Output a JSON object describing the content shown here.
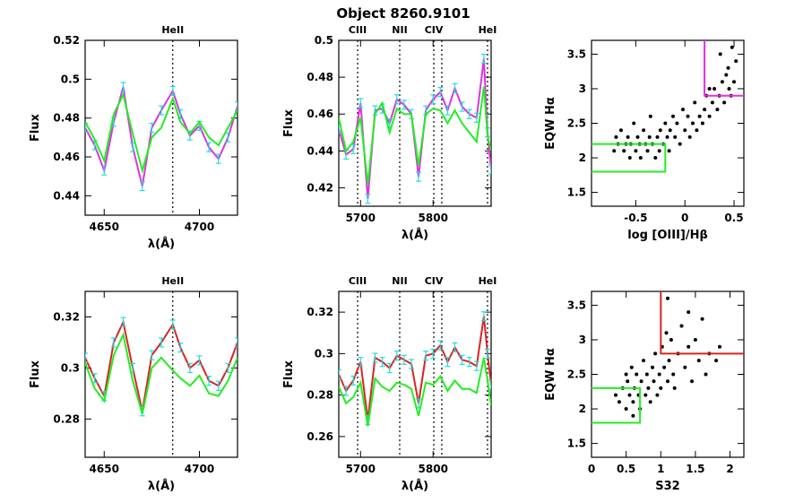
{
  "figure": {
    "title": "Object 8260.9101"
  },
  "colors": {
    "magenta": "#e030e0",
    "green": "#22ee22",
    "red": "#dd2222",
    "cyan": "#22dddd",
    "black": "#000000"
  },
  "chart_data": [
    {
      "id": "heii-top",
      "type": "line",
      "title": "",
      "xlabel": "λ(Å)",
      "ylabel": "Flux",
      "xlim": [
        4640,
        4720
      ],
      "ylim": [
        0.43,
        0.52
      ],
      "xticks": [
        4650,
        4700
      ],
      "yticks": [
        0.44,
        0.46,
        0.48,
        0.5,
        0.52
      ],
      "lines": [
        {
          "label": "HeII",
          "x": 4686
        }
      ],
      "x": [
        4640,
        4645,
        4650,
        4655,
        4660,
        4665,
        4670,
        4675,
        4680,
        4686,
        4690,
        4695,
        4700,
        4705,
        4710,
        4715,
        4720
      ],
      "series": [
        {
          "color": "magenta",
          "errors": true,
          "values": [
            0.475,
            0.466,
            0.453,
            0.478,
            0.496,
            0.465,
            0.445,
            0.475,
            0.484,
            0.494,
            0.482,
            0.471,
            0.476,
            0.465,
            0.459,
            0.47,
            0.486
          ]
        },
        {
          "color": "green",
          "values": [
            0.478,
            0.469,
            0.458,
            0.482,
            0.492,
            0.472,
            0.453,
            0.47,
            0.475,
            0.49,
            0.478,
            0.472,
            0.478,
            0.47,
            0.466,
            0.475,
            0.484
          ]
        }
      ]
    },
    {
      "id": "ciii-top",
      "type": "line",
      "title": "",
      "xlabel": "λ(Å)",
      "ylabel": "Flux",
      "xlim": [
        5670,
        5880
      ],
      "ylim": [
        0.41,
        0.5
      ],
      "xticks": [
        5700,
        5800
      ],
      "yticks": [
        0.42,
        0.44,
        0.46,
        0.48,
        0.5
      ],
      "lines": [
        {
          "label": "CIII",
          "x": 5696
        },
        {
          "label": "NII",
          "x": 5754
        },
        {
          "label": "CIV",
          "x": 5801
        },
        {
          "x": 5812
        },
        {
          "label": "HeI",
          "x": 5875
        }
      ],
      "x": [
        5670,
        5680,
        5690,
        5700,
        5710,
        5720,
        5730,
        5740,
        5750,
        5760,
        5770,
        5780,
        5790,
        5800,
        5810,
        5820,
        5830,
        5840,
        5850,
        5860,
        5870,
        5875,
        5880
      ],
      "series": [
        {
          "color": "magenta",
          "errors": true,
          "values": [
            0.452,
            0.438,
            0.441,
            0.466,
            0.414,
            0.462,
            0.463,
            0.455,
            0.468,
            0.465,
            0.46,
            0.426,
            0.462,
            0.468,
            0.472,
            0.462,
            0.474,
            0.464,
            0.46,
            0.458,
            0.49,
            0.45,
            0.43
          ]
        },
        {
          "color": "green",
          "values": [
            0.458,
            0.44,
            0.445,
            0.458,
            0.422,
            0.46,
            0.466,
            0.45,
            0.463,
            0.46,
            0.46,
            0.432,
            0.46,
            0.463,
            0.462,
            0.455,
            0.462,
            0.455,
            0.45,
            0.445,
            0.475,
            0.448,
            0.44
          ]
        }
      ]
    },
    {
      "id": "o3-ha",
      "type": "scatter",
      "title": "",
      "xlabel": "log [OIII]/Hβ",
      "ylabel": "EQW Hα",
      "xlim": [
        -0.95,
        0.6
      ],
      "ylim": [
        1.3,
        3.7
      ],
      "xticks": [
        -0.5,
        0,
        0.5
      ],
      "yticks": [
        1.5,
        2,
        2.5,
        3,
        3.5
      ],
      "boxes": [
        {
          "color": "green",
          "path": [
            [
              -0.95,
              2.2
            ],
            [
              -0.2,
              2.2
            ],
            [
              -0.2,
              1.8
            ],
            [
              -0.95,
              1.8
            ]
          ]
        },
        {
          "color": "magenta",
          "path": [
            [
              0.2,
              3.7
            ],
            [
              0.2,
              2.9
            ],
            [
              0.6,
              2.9
            ]
          ]
        }
      ],
      "points": [
        [
          -0.72,
          2.1
        ],
        [
          -0.7,
          2.3
        ],
        [
          -0.68,
          2.2
        ],
        [
          -0.65,
          2.4
        ],
        [
          -0.62,
          2.1
        ],
        [
          -0.6,
          2.2
        ],
        [
          -0.58,
          2.3
        ],
        [
          -0.56,
          2.0
        ],
        [
          -0.55,
          2.2
        ],
        [
          -0.52,
          2.5
        ],
        [
          -0.5,
          2.1
        ],
        [
          -0.48,
          2.3
        ],
        [
          -0.46,
          2.2
        ],
        [
          -0.45,
          2.0
        ],
        [
          -0.42,
          2.4
        ],
        [
          -0.4,
          2.2
        ],
        [
          -0.38,
          2.1
        ],
        [
          -0.36,
          2.3
        ],
        [
          -0.35,
          2.6
        ],
        [
          -0.33,
          2.2
        ],
        [
          -0.3,
          2.0
        ],
        [
          -0.28,
          2.3
        ],
        [
          -0.26,
          2.1
        ],
        [
          -0.25,
          2.4
        ],
        [
          -0.22,
          2.2
        ],
        [
          -0.2,
          2.5
        ],
        [
          -0.18,
          2.3
        ],
        [
          -0.16,
          2.1
        ],
        [
          -0.15,
          2.4
        ],
        [
          -0.12,
          2.6
        ],
        [
          -0.1,
          2.3
        ],
        [
          -0.08,
          2.5
        ],
        [
          -0.05,
          2.2
        ],
        [
          -0.02,
          2.7
        ],
        [
          0.0,
          2.4
        ],
        [
          0.03,
          2.6
        ],
        [
          0.05,
          2.3
        ],
        [
          0.08,
          2.5
        ],
        [
          0.1,
          2.8
        ],
        [
          0.12,
          2.4
        ],
        [
          0.15,
          2.6
        ],
        [
          0.18,
          2.5
        ],
        [
          0.2,
          2.7
        ],
        [
          0.22,
          2.9
        ],
        [
          0.25,
          2.6
        ],
        [
          0.28,
          2.8
        ],
        [
          0.3,
          3.0
        ],
        [
          0.33,
          2.7
        ],
        [
          0.35,
          2.9
        ],
        [
          0.38,
          3.1
        ],
        [
          0.4,
          2.8
        ],
        [
          0.42,
          3.2
        ],
        [
          0.45,
          3.0
        ],
        [
          0.47,
          2.9
        ],
        [
          0.5,
          3.1
        ],
        [
          0.52,
          3.4
        ],
        [
          0.44,
          3.3
        ],
        [
          0.48,
          3.6
        ],
        [
          0.36,
          3.5
        ],
        [
          0.25,
          3.0
        ]
      ]
    },
    {
      "id": "heii-bottom",
      "type": "line",
      "title": "",
      "xlabel": "λ(Å)",
      "ylabel": "Flux",
      "xlim": [
        4640,
        4720
      ],
      "ylim": [
        0.265,
        0.33
      ],
      "xticks": [
        4650,
        4700
      ],
      "yticks": [
        0.28,
        0.3,
        0.32
      ],
      "lines": [
        {
          "label": "HeII",
          "x": 4686
        }
      ],
      "x": [
        4640,
        4645,
        4650,
        4655,
        4660,
        4665,
        4670,
        4675,
        4680,
        4686,
        4690,
        4695,
        4700,
        4705,
        4710,
        4715,
        4720
      ],
      "series": [
        {
          "color": "red",
          "errors": true,
          "values": [
            0.304,
            0.296,
            0.289,
            0.31,
            0.318,
            0.3,
            0.283,
            0.305,
            0.31,
            0.317,
            0.308,
            0.3,
            0.303,
            0.295,
            0.293,
            0.3,
            0.31
          ]
        },
        {
          "color": "green",
          "values": [
            0.302,
            0.292,
            0.287,
            0.305,
            0.313,
            0.295,
            0.282,
            0.3,
            0.304,
            0.299,
            0.296,
            0.293,
            0.297,
            0.29,
            0.289,
            0.295,
            0.304
          ]
        }
      ]
    },
    {
      "id": "ciii-bottom",
      "type": "line",
      "title": "",
      "xlabel": "λ(Å)",
      "ylabel": "Flux",
      "xlim": [
        5670,
        5880
      ],
      "ylim": [
        0.25,
        0.33
      ],
      "xticks": [
        5700,
        5800
      ],
      "yticks": [
        0.26,
        0.28,
        0.3,
        0.32
      ],
      "lines": [
        {
          "label": "CIII",
          "x": 5696
        },
        {
          "label": "NII",
          "x": 5754
        },
        {
          "label": "CIV",
          "x": 5801
        },
        {
          "x": 5812
        },
        {
          "label": "HeI",
          "x": 5875
        }
      ],
      "x": [
        5670,
        5680,
        5690,
        5700,
        5710,
        5720,
        5730,
        5740,
        5750,
        5760,
        5770,
        5780,
        5790,
        5800,
        5810,
        5820,
        5830,
        5840,
        5850,
        5860,
        5870,
        5875,
        5880
      ],
      "series": [
        {
          "color": "red",
          "errors": true,
          "values": [
            0.29,
            0.282,
            0.287,
            0.296,
            0.268,
            0.298,
            0.296,
            0.293,
            0.299,
            0.297,
            0.295,
            0.276,
            0.299,
            0.3,
            0.304,
            0.296,
            0.303,
            0.297,
            0.296,
            0.294,
            0.318,
            0.3,
            0.285
          ]
        },
        {
          "color": "green",
          "values": [
            0.284,
            0.276,
            0.279,
            0.286,
            0.265,
            0.288,
            0.284,
            0.282,
            0.286,
            0.285,
            0.283,
            0.27,
            0.286,
            0.285,
            0.289,
            0.282,
            0.287,
            0.283,
            0.283,
            0.281,
            0.298,
            0.287,
            0.275
          ]
        }
      ]
    },
    {
      "id": "s32-ha",
      "type": "scatter",
      "title": "",
      "xlabel": "S32",
      "ylabel": "EQW Hα",
      "xlim": [
        0,
        2.2
      ],
      "ylim": [
        1.3,
        3.7
      ],
      "xticks": [
        0,
        0.5,
        1,
        1.5,
        2
      ],
      "yticks": [
        1.5,
        2,
        2.5,
        3,
        3.5
      ],
      "boxes": [
        {
          "color": "green",
          "path": [
            [
              0,
              2.3
            ],
            [
              0.7,
              2.3
            ],
            [
              0.7,
              1.8
            ],
            [
              0,
              1.8
            ]
          ]
        },
        {
          "color": "red",
          "path": [
            [
              1.0,
              3.7
            ],
            [
              1.0,
              2.8
            ],
            [
              2.2,
              2.8
            ]
          ]
        }
      ],
      "points": [
        [
          0.4,
          2.1
        ],
        [
          0.45,
          2.3
        ],
        [
          0.5,
          2.0
        ],
        [
          0.52,
          2.4
        ],
        [
          0.55,
          2.2
        ],
        [
          0.58,
          2.6
        ],
        [
          0.6,
          2.1
        ],
        [
          0.62,
          2.3
        ],
        [
          0.65,
          2.5
        ],
        [
          0.68,
          2.2
        ],
        [
          0.7,
          2.0
        ],
        [
          0.72,
          2.4
        ],
        [
          0.75,
          2.7
        ],
        [
          0.78,
          2.2
        ],
        [
          0.8,
          2.5
        ],
        [
          0.82,
          2.3
        ],
        [
          0.85,
          2.1
        ],
        [
          0.88,
          2.6
        ],
        [
          0.9,
          2.4
        ],
        [
          0.92,
          2.8
        ],
        [
          0.95,
          2.2
        ],
        [
          0.98,
          2.5
        ],
        [
          1.0,
          2.3
        ],
        [
          1.02,
          2.9
        ],
        [
          1.05,
          2.6
        ],
        [
          1.08,
          3.1
        ],
        [
          1.1,
          2.4
        ],
        [
          1.12,
          2.7
        ],
        [
          1.15,
          3.0
        ],
        [
          1.18,
          2.5
        ],
        [
          1.2,
          2.3
        ],
        [
          1.25,
          2.8
        ],
        [
          1.3,
          3.2
        ],
        [
          1.35,
          2.6
        ],
        [
          1.4,
          2.9
        ],
        [
          1.45,
          2.4
        ],
        [
          1.5,
          3.0
        ],
        [
          1.55,
          2.7
        ],
        [
          1.6,
          3.3
        ],
        [
          1.65,
          2.5
        ],
        [
          1.7,
          2.8
        ],
        [
          1.8,
          2.7
        ],
        [
          1.85,
          2.9
        ],
        [
          1.4,
          3.4
        ],
        [
          1.1,
          3.6
        ],
        [
          0.6,
          1.9
        ],
        [
          0.5,
          2.5
        ],
        [
          0.35,
          2.2
        ]
      ]
    }
  ]
}
